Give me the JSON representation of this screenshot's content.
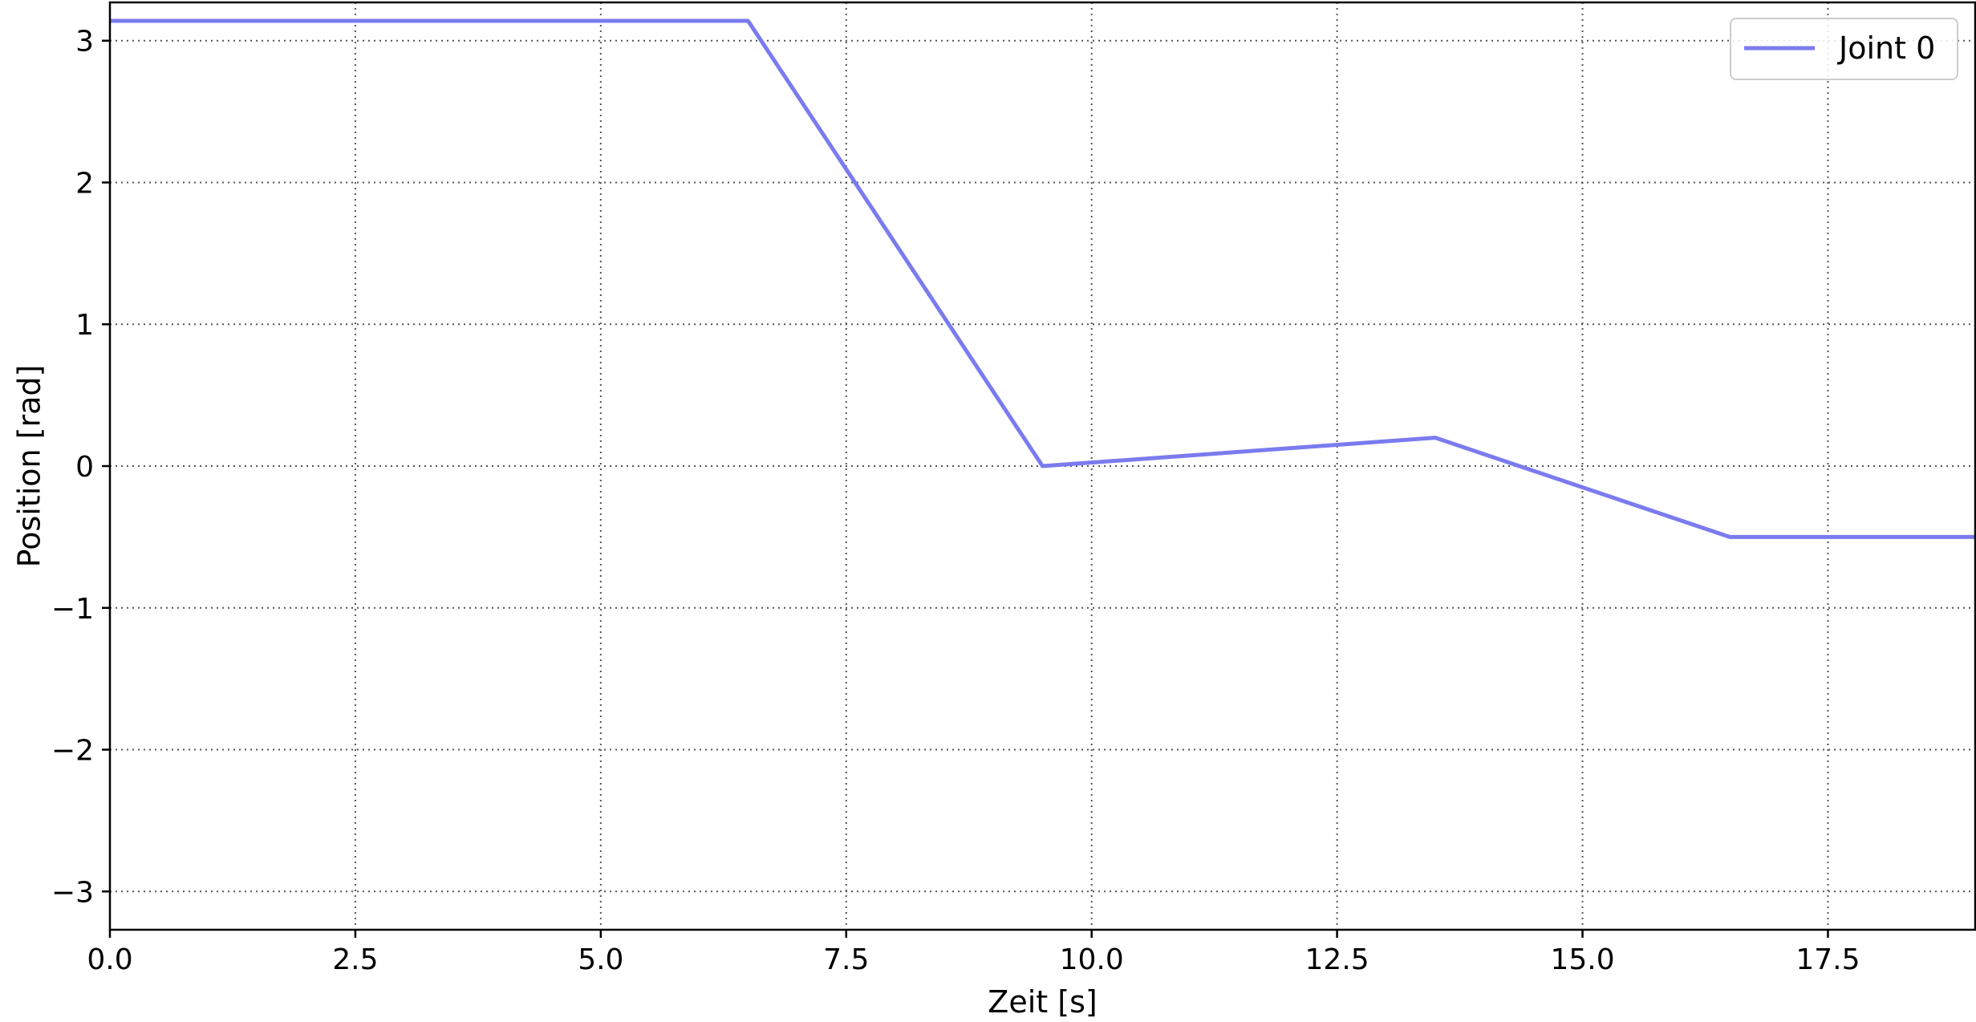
{
  "chart_data": {
    "type": "line",
    "title": "",
    "xlabel": "Zeit [s]",
    "ylabel": "Position [rad]",
    "xlim": [
      0,
      19
    ],
    "ylim": [
      -3.27,
      3.27
    ],
    "grid": true,
    "legend_position": "top-right",
    "x_ticks": [
      0.0,
      2.5,
      5.0,
      7.5,
      10.0,
      12.5,
      15.0,
      17.5
    ],
    "x_tick_labels": [
      "0.0",
      "2.5",
      "5.0",
      "7.5",
      "10.0",
      "12.5",
      "15.0",
      "17.5"
    ],
    "y_ticks": [
      3,
      2,
      1,
      0,
      -1,
      -2,
      -3
    ],
    "y_tick_labels": [
      "3",
      "2",
      "1",
      "0",
      "−1",
      "−2",
      "−3"
    ],
    "series": [
      {
        "name": "Joint 0",
        "color": "#7b7bef",
        "x": [
          0,
          6.5,
          9.5,
          13.5,
          16.5,
          19
        ],
        "y": [
          3.14,
          3.14,
          0.0,
          0.2,
          -0.5,
          -0.5
        ]
      }
    ]
  }
}
